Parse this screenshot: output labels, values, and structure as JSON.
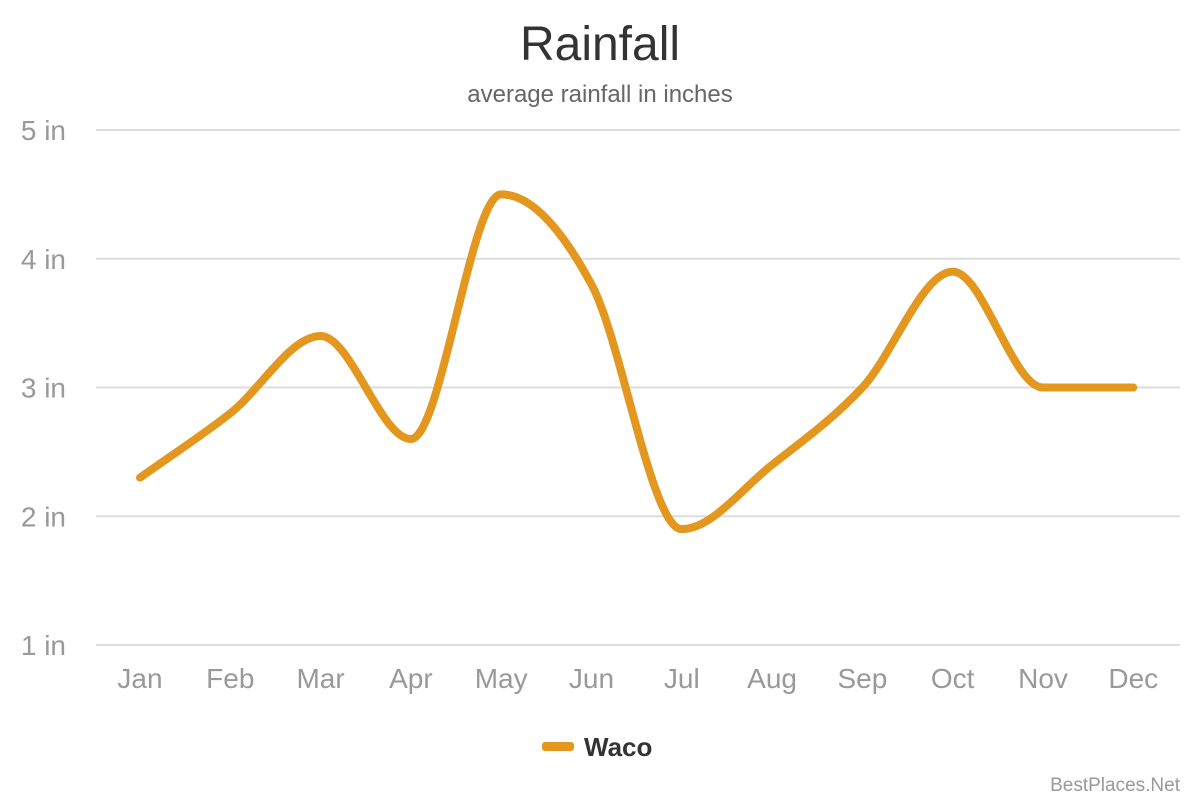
{
  "chart_data": {
    "type": "line",
    "title": "Rainfall",
    "subtitle": "average rainfall in inches",
    "categories": [
      "Jan",
      "Feb",
      "Mar",
      "Apr",
      "May",
      "Jun",
      "Jul",
      "Aug",
      "Sep",
      "Oct",
      "Nov",
      "Dec"
    ],
    "series": [
      {
        "name": "Waco",
        "values": [
          2.3,
          2.8,
          3.4,
          2.6,
          4.5,
          3.8,
          1.9,
          2.4,
          3.0,
          3.9,
          3.0,
          3.0
        ],
        "color": "#e4971e"
      }
    ],
    "y_ticks": [
      {
        "value": 1,
        "label": "1 in"
      },
      {
        "value": 2,
        "label": "2 in"
      },
      {
        "value": 3,
        "label": "3 in"
      },
      {
        "value": 4,
        "label": "4 in"
      },
      {
        "value": 5,
        "label": "5 in"
      }
    ],
    "ylim": [
      1,
      5
    ],
    "grid": true,
    "legend": "bottom-center",
    "credit": "BestPlaces.Net"
  }
}
